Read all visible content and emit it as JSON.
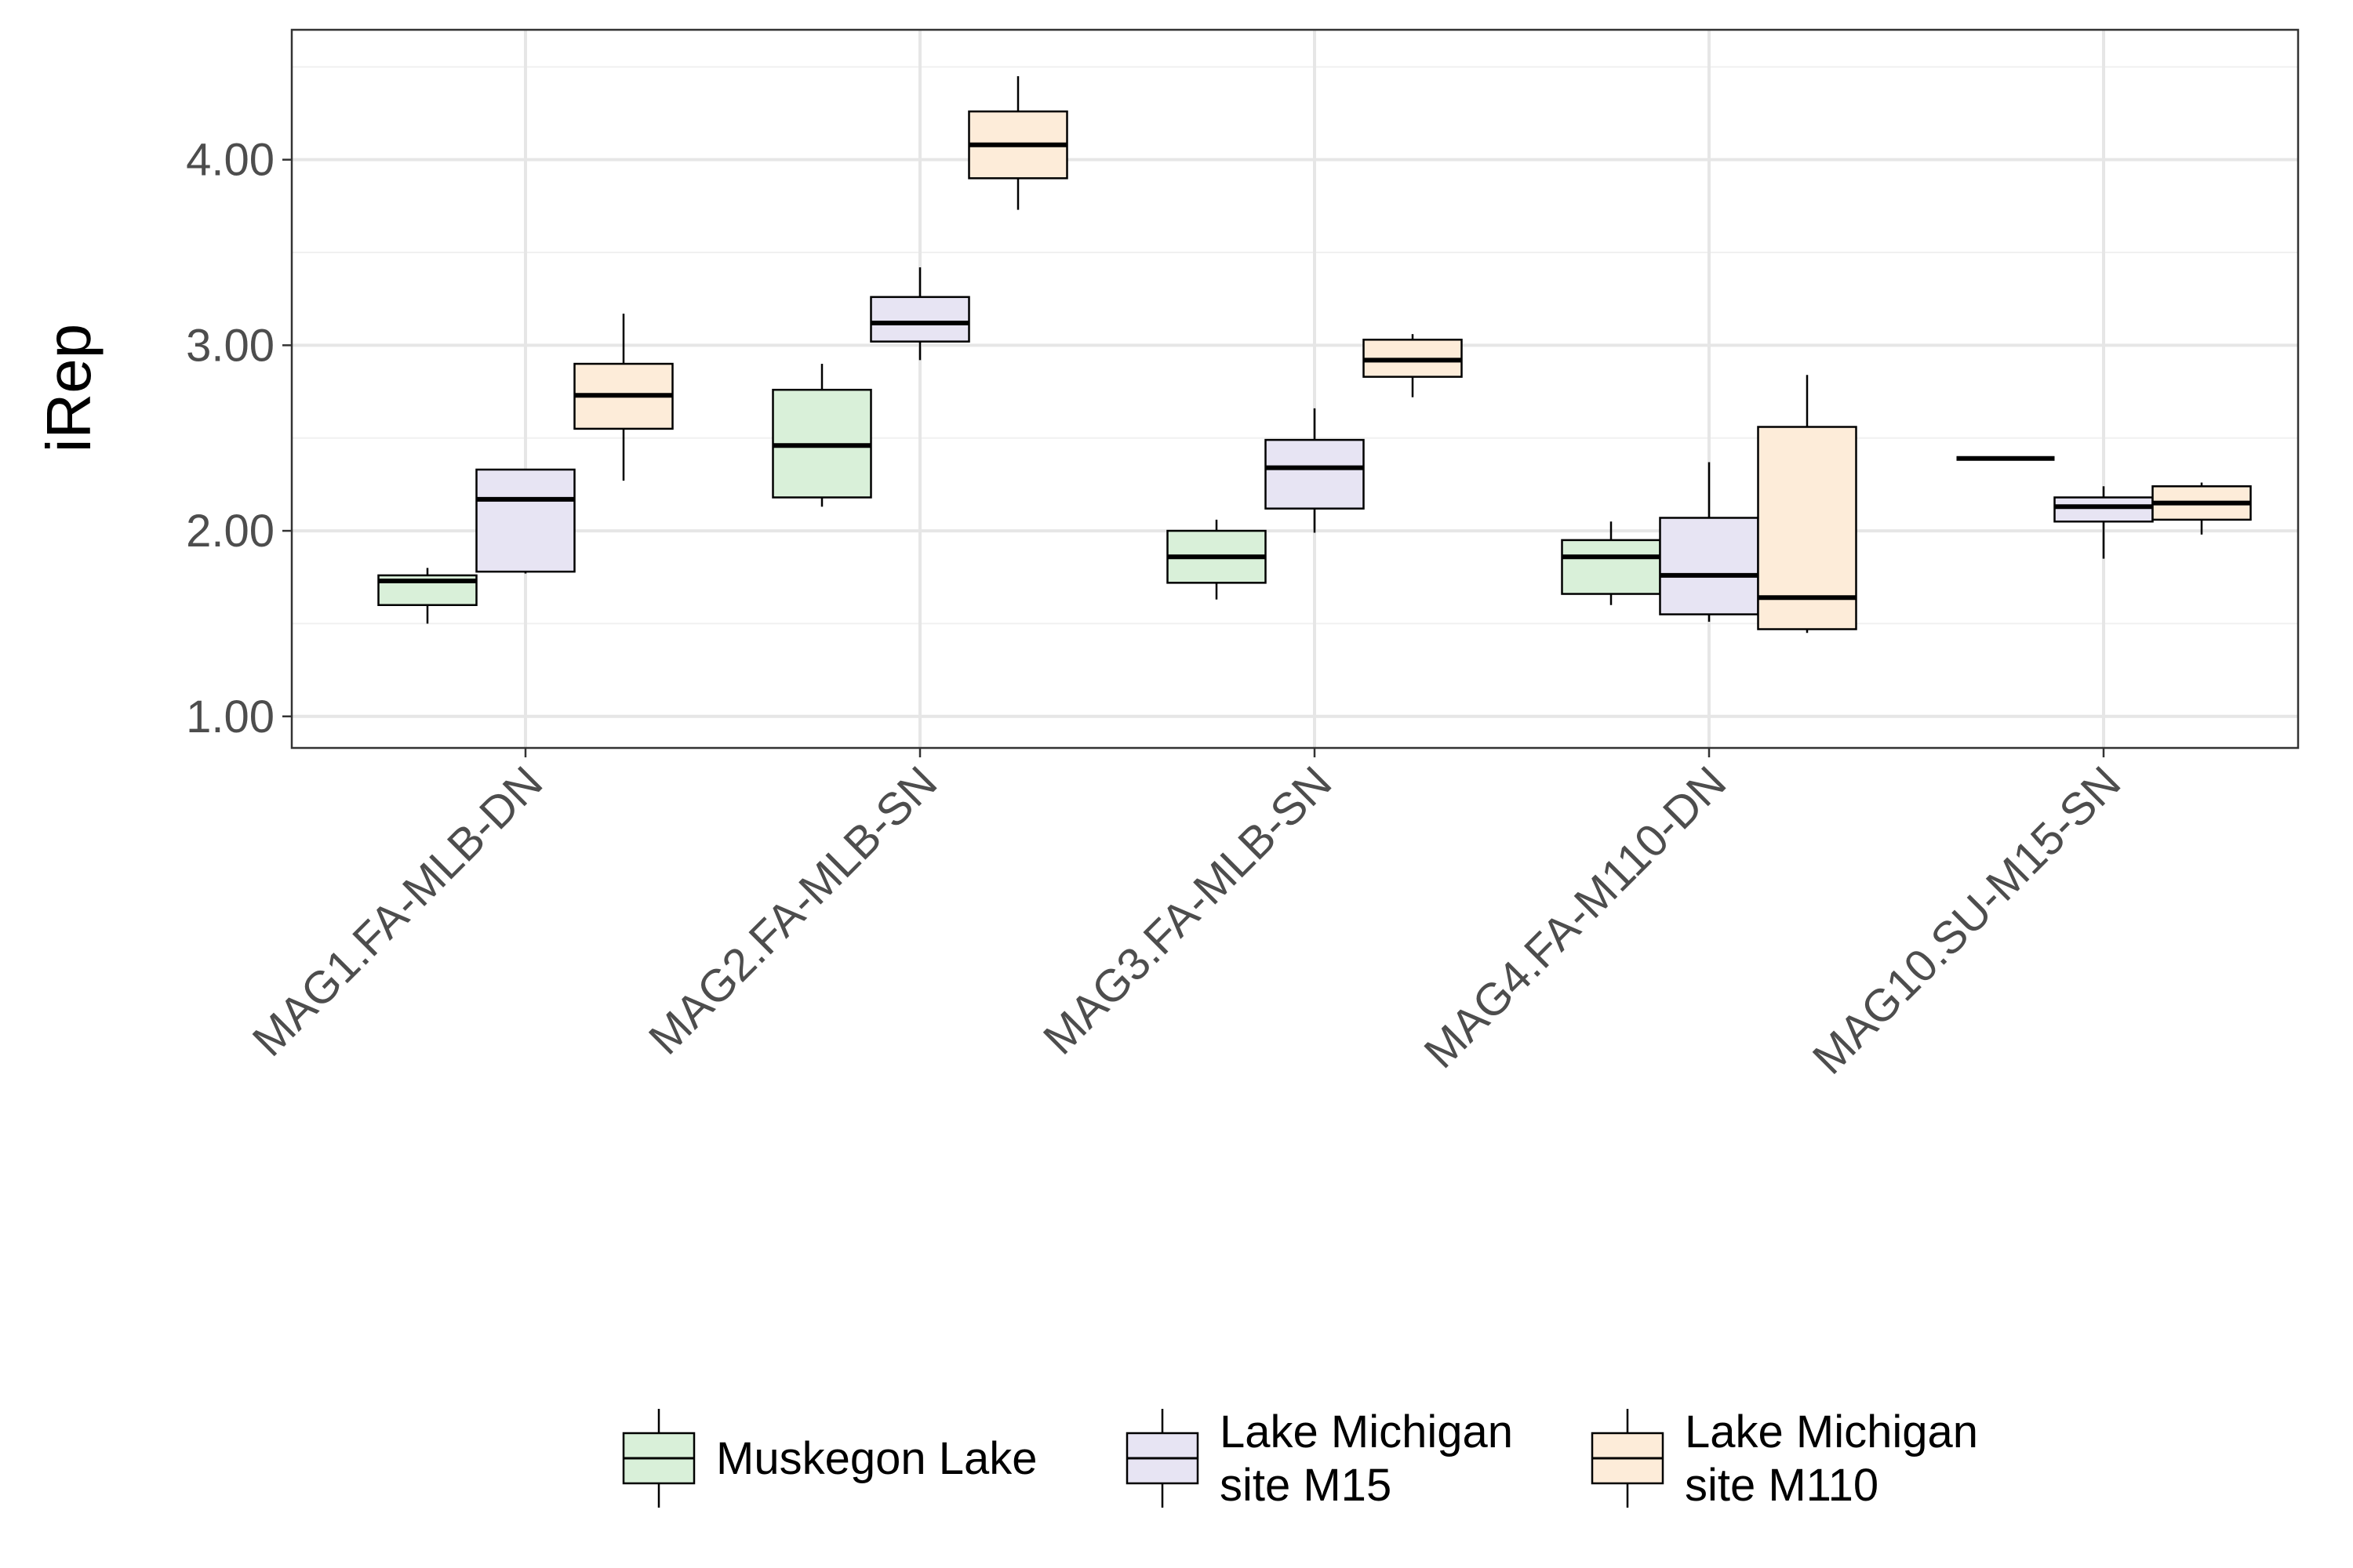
{
  "chart_data": {
    "type": "boxplot",
    "ylabel": "iRep",
    "xlabel": "",
    "ylim": [
      0.83,
      4.7
    ],
    "y_ticks": [
      1,
      2,
      3,
      4
    ],
    "y_tick_labels": [
      "1.00",
      "2.00",
      "3.00",
      "4.00"
    ],
    "y_minor_ticks": [
      1.5,
      2.5,
      3.5,
      4.5
    ],
    "grid": true,
    "legend_position": "bottom",
    "categories": [
      "MAG1.FA-MLB-DN",
      "MAG2.FA-MLB-SN",
      "MAG3.FA-MLB-SN",
      "MAG4.FA-M110-DN",
      "MAG10.SU-M15-SN"
    ],
    "series": [
      {
        "name": "Muskegon Lake",
        "color": "#d9f0d9",
        "boxes": [
          {
            "min": 1.5,
            "q1": 1.6,
            "median": 1.73,
            "q3": 1.76,
            "max": 1.8
          },
          {
            "min": 2.13,
            "q1": 2.18,
            "median": 2.46,
            "q3": 2.76,
            "max": 2.9
          },
          {
            "min": 1.63,
            "q1": 1.72,
            "median": 1.86,
            "q3": 2.0,
            "max": 2.06
          },
          {
            "min": 1.6,
            "q1": 1.66,
            "median": 1.86,
            "q3": 1.95,
            "max": 2.05
          },
          {
            "min": 2.39,
            "q1": 2.39,
            "median": 2.39,
            "q3": 2.39,
            "max": 2.39
          }
        ]
      },
      {
        "name": "Lake Michigan site M15",
        "legend_lines": [
          "Lake Michigan",
          "site M15"
        ],
        "color": "#e7e4f3",
        "boxes": [
          {
            "min": 1.77,
            "q1": 1.78,
            "median": 2.17,
            "q3": 2.33,
            "max": 2.33
          },
          {
            "min": 2.92,
            "q1": 3.02,
            "median": 3.12,
            "q3": 3.26,
            "max": 3.42
          },
          {
            "min": 1.99,
            "q1": 2.12,
            "median": 2.34,
            "q3": 2.49,
            "max": 2.66
          },
          {
            "min": 1.51,
            "q1": 1.55,
            "median": 1.76,
            "q3": 2.07,
            "max": 2.37
          },
          {
            "min": 1.85,
            "q1": 2.05,
            "median": 2.13,
            "q3": 2.18,
            "max": 2.24
          }
        ]
      },
      {
        "name": "Lake Michigan site M110",
        "legend_lines": [
          "Lake Michigan",
          "site M110"
        ],
        "color": "#fdecd9",
        "boxes": [
          {
            "min": 2.27,
            "q1": 2.55,
            "median": 2.73,
            "q3": 2.9,
            "max": 3.17
          },
          {
            "min": 3.73,
            "q1": 3.9,
            "median": 4.08,
            "q3": 4.26,
            "max": 4.45
          },
          {
            "min": 2.72,
            "q1": 2.83,
            "median": 2.92,
            "q3": 3.03,
            "max": 3.06
          },
          {
            "min": 1.45,
            "q1": 1.47,
            "median": 1.64,
            "q3": 2.56,
            "max": 2.84
          },
          {
            "min": 1.98,
            "q1": 2.06,
            "median": 2.15,
            "q3": 2.24,
            "max": 2.26
          }
        ]
      }
    ]
  }
}
